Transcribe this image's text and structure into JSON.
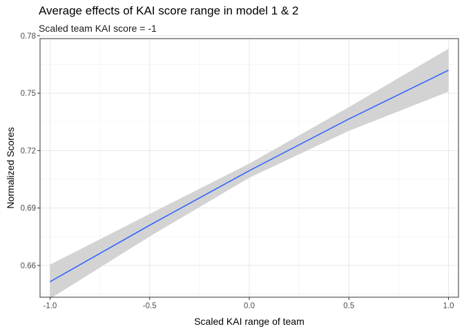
{
  "chart_data": {
    "type": "line",
    "title": "Average effects of KAI score range in model 1 & 2",
    "subtitle": "Scaled team KAI score = -1",
    "xlabel": "Scaled KAI range of team",
    "ylabel": "Normalized Scores",
    "xlim": [
      -1.05,
      1.05
    ],
    "ylim": [
      0.6434,
      0.7785
    ],
    "x_ticks": [
      -1.0,
      -0.5,
      0.0,
      0.5,
      1.0
    ],
    "x_tick_labels": [
      "-1.0",
      "-0.5",
      "0.0",
      "0.5",
      "1.0"
    ],
    "y_ticks": [
      0.66,
      0.69,
      0.72,
      0.75,
      0.78
    ],
    "y_tick_labels": [
      "0.66",
      "0.69",
      "0.72",
      "0.75",
      "0.78"
    ],
    "grid": true,
    "series": [
      {
        "x": [
          -1.0,
          -0.5,
          0.0,
          0.5,
          1.0
        ],
        "y": [
          0.6515,
          0.681,
          0.7095,
          0.7365,
          0.762
        ],
        "lower": [
          0.6426,
          0.6751,
          0.7058,
          0.7303,
          0.7508
        ],
        "upper": [
          0.6604,
          0.6869,
          0.7132,
          0.7427,
          0.7732
        ],
        "color": "#3366ff",
        "band_color": "#d3d3d3"
      }
    ]
  }
}
